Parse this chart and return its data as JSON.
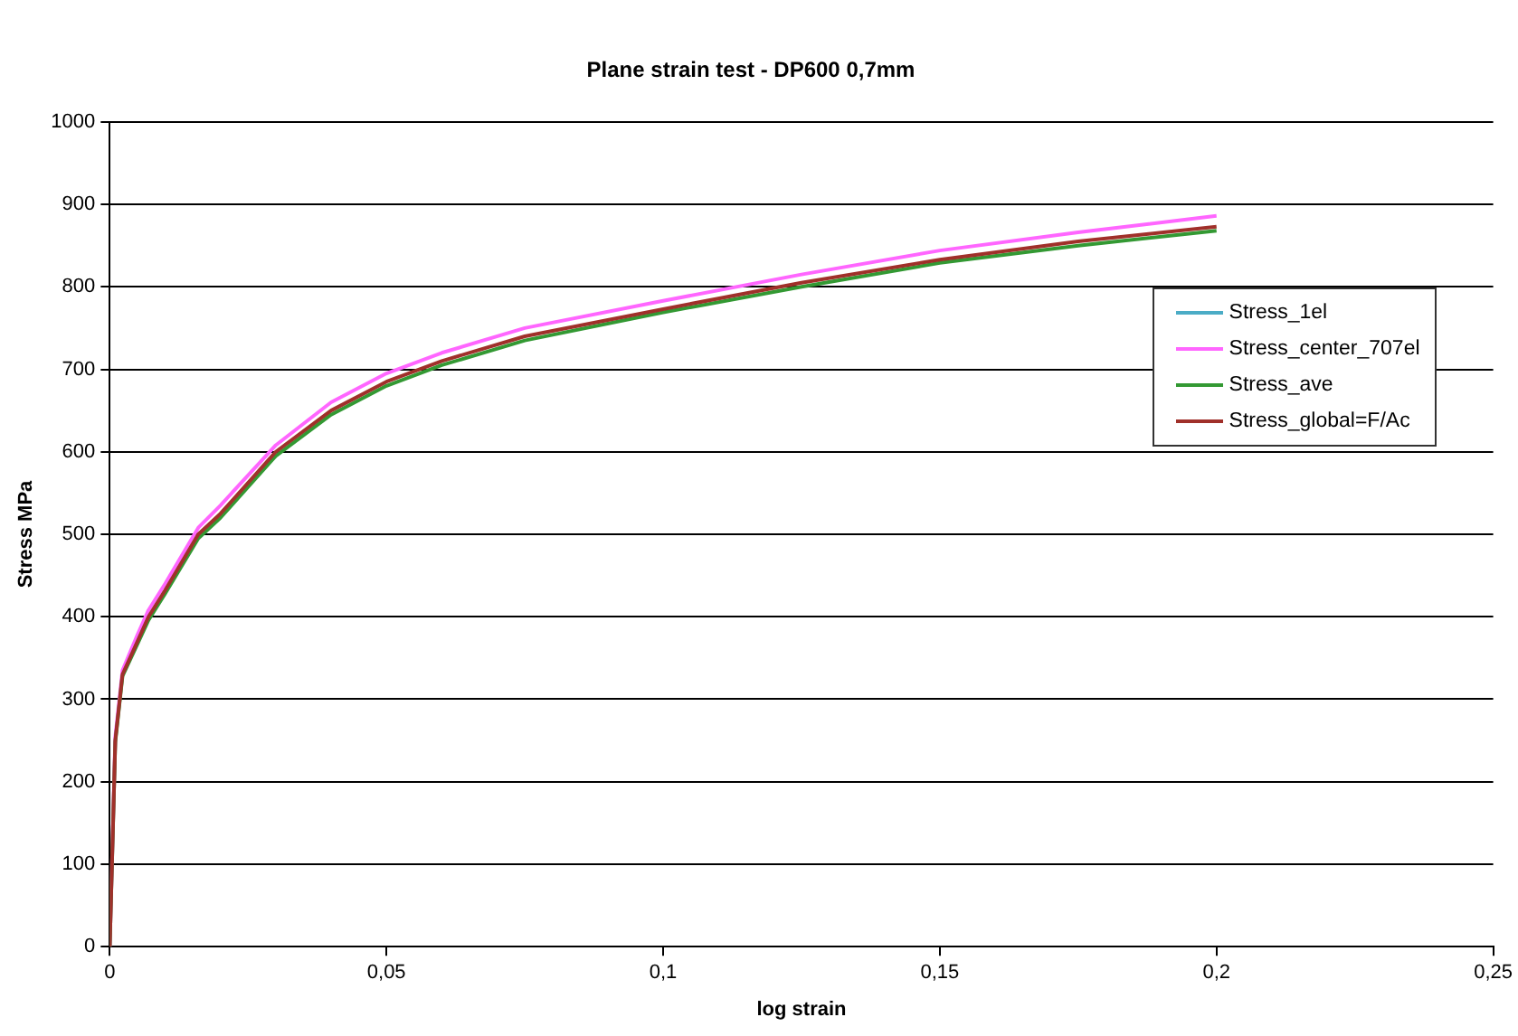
{
  "chart_data": {
    "type": "line",
    "title": "Plane strain test - DP600 0,7mm",
    "xlabel": "log strain",
    "ylabel": "Stress MPa",
    "x": [
      0,
      0.001,
      0.0023,
      0.005,
      0.007,
      0.01,
      0.016,
      0.02,
      0.03,
      0.04,
      0.05,
      0.06,
      0.075,
      0.1,
      0.125,
      0.15,
      0.175,
      0.2
    ],
    "series": [
      {
        "name": "Stress_1el",
        "color": "#4bacc6",
        "values": [
          null,
          null,
          null,
          null,
          null,
          null,
          null,
          null,
          null,
          null,
          null,
          null,
          null,
          null,
          null,
          null,
          null,
          null
        ]
      },
      {
        "name": "Stress_center_707el",
        "color": "#ff66ff",
        "values": [
          0,
          255,
          335,
          378,
          408,
          440,
          508,
          535,
          608,
          660,
          695,
          720,
          750,
          783,
          815,
          844,
          866,
          886
        ]
      },
      {
        "name": "Stress_ave",
        "color": "#339933",
        "values": [
          0,
          248,
          328,
          367,
          396,
          428,
          495,
          520,
          595,
          645,
          680,
          705,
          735,
          769,
          800,
          829,
          850,
          868
        ]
      },
      {
        "name": "Stress_global=F/Ac",
        "color": "#a0302a",
        "values": [
          0,
          250,
          330,
          370,
          400,
          432,
          500,
          525,
          600,
          650,
          685,
          710,
          740,
          773,
          805,
          833,
          855,
          873
        ]
      }
    ],
    "xlim": [
      0,
      0.25
    ],
    "xticks": [
      0,
      {
        "value": 0.05,
        "label": "0,05"
      },
      {
        "value": 0.1,
        "label": "0,1"
      },
      {
        "value": 0.15,
        "label": "0,15"
      },
      {
        "value": 0.2,
        "label": "0,2"
      },
      {
        "value": 0.25,
        "label": "0,25"
      }
    ],
    "ylim": [
      0,
      1000
    ],
    "yticks": [
      0,
      100,
      200,
      300,
      400,
      500,
      600,
      700,
      800,
      900,
      1000
    ],
    "grid": "y",
    "legend": "right",
    "marker": "none",
    "line_style": "solid"
  }
}
